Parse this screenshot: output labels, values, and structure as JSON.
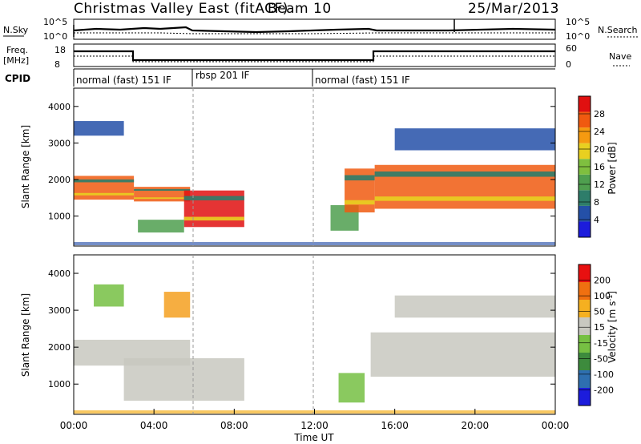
{
  "header": {
    "title": "Christmas Valley East (fitACF)",
    "beam": "Beam 10",
    "date": "25/Mar/2013"
  },
  "top_panels": {
    "nsky_label": "N.Sky",
    "nsky_ticks": [
      "10^5",
      "10^0"
    ],
    "nsearch_label": "N.Search",
    "nsearch_ticks": [
      "10^5",
      "10^0"
    ],
    "freq_label_1": "Freq.",
    "freq_label_2": "[MHz]",
    "freq_ticks": [
      "18",
      "8"
    ],
    "nave_label": "Nave",
    "nave_ticks": [
      "60",
      "0"
    ],
    "cpid_label": "CPID",
    "cpid_segments": [
      "normal (fast) 151 IF",
      "rbsp 201 IF",
      "normal (fast) 151 IF"
    ]
  },
  "chart_data": [
    {
      "type": "heatmap",
      "panel": "power",
      "ylabel": "Slant Range [km]",
      "yticks": [
        "1000",
        "2000",
        "3000",
        "4000"
      ],
      "ylim": [
        180,
        4500
      ],
      "xlim_hours": [
        0,
        24
      ],
      "colorbar_label": "Power [dB]",
      "colorbar_ticks": [
        "4",
        "8",
        "12",
        "16",
        "20",
        "24",
        "28"
      ],
      "colorbar_colors": [
        "#1c1cdc",
        "#2450a8",
        "#2e7d6a",
        "#4f9f4f",
        "#7fbf3f",
        "#e8d020",
        "#f59a10",
        "#f05a10",
        "#e01010"
      ],
      "bands": [
        {
          "t0": 0.0,
          "t1": 3.0,
          "r0": 1450,
          "r1": 2100,
          "level": "high"
        },
        {
          "t0": 3.0,
          "t1": 5.8,
          "r0": 1400,
          "r1": 1800,
          "level": "high"
        },
        {
          "t0": 5.5,
          "t1": 8.5,
          "r0": 700,
          "r1": 1700,
          "level": "very-high"
        },
        {
          "t0": 3.2,
          "t1": 5.5,
          "r0": 550,
          "r1": 900,
          "level": "mid"
        },
        {
          "t0": 12.8,
          "t1": 14.2,
          "r0": 600,
          "r1": 1300,
          "level": "mid"
        },
        {
          "t0": 13.5,
          "t1": 15.0,
          "r0": 1100,
          "r1": 2300,
          "level": "high"
        },
        {
          "t0": 15.0,
          "t1": 24.0,
          "r0": 1200,
          "r1": 2400,
          "level": "high"
        },
        {
          "t0": 0.0,
          "t1": 2.5,
          "r0": 3200,
          "r1": 3600,
          "level": "low"
        },
        {
          "t0": 16.0,
          "t1": 24.0,
          "r0": 2800,
          "r1": 3400,
          "level": "low"
        }
      ]
    },
    {
      "type": "heatmap",
      "panel": "velocity",
      "ylabel": "Slant Range [km]",
      "yticks": [
        "1000",
        "2000",
        "3000",
        "4000"
      ],
      "ylim": [
        180,
        4500
      ],
      "xlim_hours": [
        0,
        24
      ],
      "colorbar_label": "Velocity [m s",
      "colorbar_label_sup": "-1",
      "colorbar_label_tail": "]",
      "colorbar_ticks": [
        "200",
        "100",
        "50",
        "15",
        "-15",
        "-50",
        "-100",
        "-200"
      ],
      "colorbar_colors": [
        "#1c1cdc",
        "#2e6fb0",
        "#3d8b3d",
        "#76c043",
        "#c8c8c0",
        "#f5b020",
        "#f07010",
        "#e81010"
      ],
      "xticks": [
        "00:00",
        "04:00",
        "08:00",
        "12:00",
        "16:00",
        "20:00",
        "00:00"
      ],
      "xlabel": "Time UT",
      "bands": [
        {
          "t0": 0.0,
          "t1": 5.8,
          "r0": 1500,
          "r1": 2200,
          "level": "grey"
        },
        {
          "t0": 2.5,
          "t1": 8.5,
          "r0": 550,
          "r1": 1700,
          "level": "grey"
        },
        {
          "t0": 13.2,
          "t1": 14.5,
          "r0": 500,
          "r1": 1300,
          "level": "green"
        },
        {
          "t0": 14.8,
          "t1": 24.0,
          "r0": 1200,
          "r1": 2400,
          "level": "grey"
        },
        {
          "t0": 1.0,
          "t1": 2.5,
          "r0": 3100,
          "r1": 3700,
          "level": "green"
        },
        {
          "t0": 4.5,
          "t1": 5.8,
          "r0": 2800,
          "r1": 3500,
          "level": "orange"
        },
        {
          "t0": 16.0,
          "t1": 24.0,
          "r0": 2800,
          "r1": 3400,
          "level": "grey"
        }
      ]
    }
  ],
  "mode_change_hours": [
    6.0,
    12.0
  ]
}
